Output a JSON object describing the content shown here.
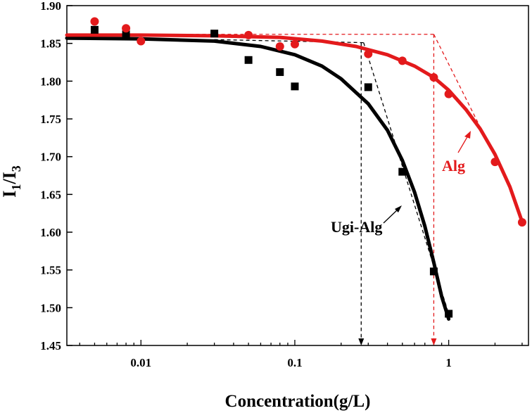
{
  "chart_data": {
    "type": "scatter",
    "title": "",
    "xlabel": "Concentration(g/L)",
    "ylabel": {
      "base": "I",
      "sub1": "1",
      "slash": "/I",
      "sub2": "3"
    },
    "x_scale": "log",
    "xlim": [
      0.0033,
      3.3
    ],
    "ylim": [
      1.45,
      1.9
    ],
    "x_ticks": [
      0.01,
      0.1,
      1
    ],
    "x_tick_labels": [
      "0.01",
      "0.1",
      "1"
    ],
    "y_ticks": [
      1.45,
      1.5,
      1.55,
      1.6,
      1.65,
      1.7,
      1.75,
      1.8,
      1.85,
      1.9
    ],
    "y_tick_labels": [
      "1.45",
      "1.50",
      "1.55",
      "1.60",
      "1.65",
      "1.70",
      "1.75",
      "1.80",
      "1.85",
      "1.90"
    ],
    "grid": false,
    "series": [
      {
        "name": "Ugi-Alg",
        "color": "#000000",
        "marker": "square",
        "points": [
          [
            0.005,
            1.868
          ],
          [
            0.008,
            1.862
          ],
          [
            0.03,
            1.863
          ],
          [
            0.05,
            1.828
          ],
          [
            0.08,
            1.812
          ],
          [
            0.1,
            1.793
          ],
          [
            0.3,
            1.792
          ],
          [
            0.5,
            1.68
          ],
          [
            0.8,
            1.548
          ],
          [
            1.0,
            1.492
          ]
        ],
        "fit": [
          [
            0.0033,
            1.857
          ],
          [
            0.01,
            1.856
          ],
          [
            0.03,
            1.853
          ],
          [
            0.06,
            1.846
          ],
          [
            0.1,
            1.835
          ],
          [
            0.15,
            1.82
          ],
          [
            0.2,
            1.803
          ],
          [
            0.3,
            1.77
          ],
          [
            0.4,
            1.735
          ],
          [
            0.5,
            1.695
          ],
          [
            0.6,
            1.653
          ],
          [
            0.7,
            1.608
          ],
          [
            0.8,
            1.56
          ],
          [
            0.9,
            1.515
          ],
          [
            1.0,
            1.485
          ]
        ]
      },
      {
        "name": "Alg",
        "color": "#e31a1c",
        "marker": "circle",
        "points": [
          [
            0.005,
            1.879
          ],
          [
            0.008,
            1.87
          ],
          [
            0.01,
            1.853
          ],
          [
            0.05,
            1.861
          ],
          [
            0.08,
            1.846
          ],
          [
            0.1,
            1.849
          ],
          [
            0.3,
            1.836
          ],
          [
            0.5,
            1.827
          ],
          [
            0.8,
            1.805
          ],
          [
            1.0,
            1.783
          ],
          [
            2.0,
            1.693
          ],
          [
            3.0,
            1.613
          ]
        ],
        "fit": [
          [
            0.0033,
            1.861
          ],
          [
            0.01,
            1.861
          ],
          [
            0.03,
            1.86
          ],
          [
            0.08,
            1.858
          ],
          [
            0.15,
            1.853
          ],
          [
            0.25,
            1.846
          ],
          [
            0.4,
            1.835
          ],
          [
            0.6,
            1.82
          ],
          [
            0.8,
            1.805
          ],
          [
            1.0,
            1.788
          ],
          [
            1.3,
            1.762
          ],
          [
            1.6,
            1.737
          ],
          [
            2.0,
            1.703
          ],
          [
            2.5,
            1.66
          ],
          [
            3.0,
            1.614
          ]
        ]
      }
    ],
    "annotations": [
      {
        "text": "Ugi-Alg",
        "color": "#000000"
      },
      {
        "text": "Alg",
        "color": "#e31a1c"
      }
    ],
    "guides": {
      "black_tangent_plateau": [
        [
          0.03,
          1.855
        ],
        [
          0.28,
          1.851
        ]
      ],
      "black_tangent_slope": [
        [
          0.28,
          1.851
        ],
        [
          1.0,
          1.492
        ]
      ],
      "black_cmc": 0.27,
      "red_tangent_plateau": [
        [
          0.005,
          1.862
        ],
        [
          0.8,
          1.862
        ]
      ],
      "red_tangent_slope": [
        [
          0.8,
          1.862
        ],
        [
          1.55,
          1.745
        ]
      ],
      "red_cmc": 0.8
    }
  }
}
